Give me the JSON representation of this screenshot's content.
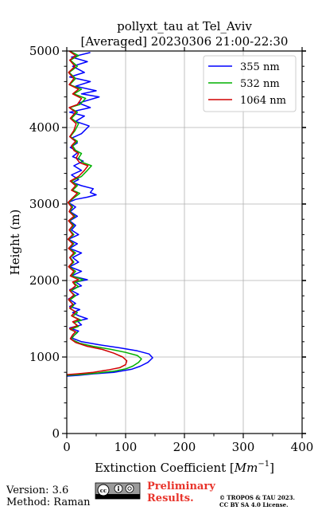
{
  "chart_data": {
    "type": "line",
    "title_line1": "pollyxt_tau at Tel_Aviv",
    "title_line2": "[Averaged] 20230306 21:00-22:30",
    "xlabel": "Extinction Coefficient [",
    "xlabel_unit": "Mm",
    "xlabel_exp": "−1",
    "xlabel_end": "]",
    "ylabel": "Height (m)",
    "xlim": [
      0,
      400
    ],
    "ylim": [
      0,
      5000
    ],
    "x_ticks": [
      0,
      100,
      200,
      300,
      400
    ],
    "x_tick_labels": [
      "0",
      "100",
      "200",
      "300",
      "400"
    ],
    "y_ticks": [
      0,
      1000,
      2000,
      3000,
      4000,
      5000
    ],
    "y_tick_labels": [
      "0",
      "1000",
      "2000",
      "3000",
      "4000",
      "5000"
    ],
    "grid": true,
    "legend_position": "top-right",
    "series": [
      {
        "name": "355 nm",
        "color": "#0000ff",
        "points": [
          [
            0,
            750
          ],
          [
            20,
            760
          ],
          [
            45,
            780
          ],
          [
            80,
            800
          ],
          [
            110,
            840
          ],
          [
            125,
            880
          ],
          [
            138,
            930
          ],
          [
            146,
            990
          ],
          [
            140,
            1040
          ],
          [
            120,
            1080
          ],
          [
            90,
            1120
          ],
          [
            55,
            1160
          ],
          [
            25,
            1200
          ],
          [
            8,
            1250
          ],
          [
            15,
            1300
          ],
          [
            20,
            1340
          ],
          [
            5,
            1380
          ],
          [
            25,
            1420
          ],
          [
            18,
            1470
          ],
          [
            35,
            1500
          ],
          [
            20,
            1540
          ],
          [
            10,
            1580
          ],
          [
            22,
            1620
          ],
          [
            5,
            1660
          ],
          [
            15,
            1700
          ],
          [
            3,
            1760
          ],
          [
            20,
            1820
          ],
          [
            5,
            1880
          ],
          [
            25,
            1930
          ],
          [
            15,
            1980
          ],
          [
            35,
            2010
          ],
          [
            8,
            2060
          ],
          [
            25,
            2120
          ],
          [
            5,
            2180
          ],
          [
            20,
            2240
          ],
          [
            10,
            2300
          ],
          [
            25,
            2360
          ],
          [
            5,
            2420
          ],
          [
            18,
            2480
          ],
          [
            3,
            2540
          ],
          [
            20,
            2600
          ],
          [
            8,
            2660
          ],
          [
            15,
            2720
          ],
          [
            5,
            2780
          ],
          [
            18,
            2840
          ],
          [
            6,
            2900
          ],
          [
            15,
            2960
          ],
          [
            3,
            3020
          ],
          [
            15,
            3060
          ],
          [
            35,
            3090
          ],
          [
            50,
            3120
          ],
          [
            40,
            3150
          ],
          [
            45,
            3200
          ],
          [
            25,
            3240
          ],
          [
            10,
            3280
          ],
          [
            20,
            3320
          ],
          [
            8,
            3380
          ],
          [
            25,
            3440
          ],
          [
            12,
            3500
          ],
          [
            28,
            3560
          ],
          [
            10,
            3620
          ],
          [
            20,
            3680
          ],
          [
            6,
            3740
          ],
          [
            18,
            3800
          ],
          [
            8,
            3860
          ],
          [
            25,
            3920
          ],
          [
            38,
            4020
          ],
          [
            15,
            4080
          ],
          [
            30,
            4150
          ],
          [
            5,
            4200
          ],
          [
            40,
            4260
          ],
          [
            20,
            4320
          ],
          [
            55,
            4400
          ],
          [
            25,
            4440
          ],
          [
            50,
            4480
          ],
          [
            15,
            4540
          ],
          [
            40,
            4600
          ],
          [
            5,
            4660
          ],
          [
            30,
            4720
          ],
          [
            10,
            4800
          ],
          [
            35,
            4860
          ],
          [
            8,
            4920
          ],
          [
            40,
            4980
          ]
        ]
      },
      {
        "name": "532 nm",
        "color": "#00b000",
        "points": [
          [
            0,
            760
          ],
          [
            20,
            770
          ],
          [
            50,
            790
          ],
          [
            80,
            815
          ],
          [
            100,
            845
          ],
          [
            112,
            880
          ],
          [
            122,
            930
          ],
          [
            127,
            975
          ],
          [
            120,
            1020
          ],
          [
            100,
            1060
          ],
          [
            75,
            1100
          ],
          [
            45,
            1140
          ],
          [
            22,
            1180
          ],
          [
            8,
            1230
          ],
          [
            12,
            1280
          ],
          [
            18,
            1320
          ],
          [
            6,
            1360
          ],
          [
            20,
            1400
          ],
          [
            12,
            1450
          ],
          [
            25,
            1480
          ],
          [
            10,
            1530
          ],
          [
            18,
            1580
          ],
          [
            6,
            1630
          ],
          [
            12,
            1680
          ],
          [
            4,
            1740
          ],
          [
            15,
            1800
          ],
          [
            6,
            1860
          ],
          [
            20,
            1920
          ],
          [
            12,
            1970
          ],
          [
            28,
            2010
          ],
          [
            8,
            2060
          ],
          [
            15,
            2120
          ],
          [
            4,
            2180
          ],
          [
            12,
            2240
          ],
          [
            6,
            2300
          ],
          [
            15,
            2360
          ],
          [
            4,
            2420
          ],
          [
            12,
            2480
          ],
          [
            3,
            2540
          ],
          [
            12,
            2600
          ],
          [
            5,
            2660
          ],
          [
            12,
            2720
          ],
          [
            4,
            2780
          ],
          [
            14,
            2840
          ],
          [
            5,
            2900
          ],
          [
            10,
            2960
          ],
          [
            3,
            3020
          ],
          [
            12,
            3080
          ],
          [
            22,
            3140
          ],
          [
            10,
            3180
          ],
          [
            18,
            3240
          ],
          [
            8,
            3300
          ],
          [
            25,
            3360
          ],
          [
            35,
            3440
          ],
          [
            42,
            3500
          ],
          [
            28,
            3540
          ],
          [
            20,
            3600
          ],
          [
            25,
            3660
          ],
          [
            15,
            3700
          ],
          [
            10,
            3760
          ],
          [
            18,
            3820
          ],
          [
            6,
            3880
          ],
          [
            14,
            3960
          ],
          [
            20,
            4050
          ],
          [
            8,
            4120
          ],
          [
            18,
            4200
          ],
          [
            5,
            4260
          ],
          [
            22,
            4300
          ],
          [
            32,
            4380
          ],
          [
            12,
            4440
          ],
          [
            25,
            4500
          ],
          [
            5,
            4560
          ],
          [
            15,
            4640
          ],
          [
            4,
            4720
          ],
          [
            18,
            4800
          ],
          [
            6,
            4880
          ],
          [
            20,
            4940
          ],
          [
            5,
            5000
          ]
        ]
      },
      {
        "name": "1064 nm",
        "color": "#d00000",
        "points": [
          [
            0,
            770
          ],
          [
            18,
            780
          ],
          [
            45,
            800
          ],
          [
            70,
            830
          ],
          [
            90,
            860
          ],
          [
            100,
            900
          ],
          [
            102,
            950
          ],
          [
            95,
            1000
          ],
          [
            80,
            1050
          ],
          [
            60,
            1100
          ],
          [
            35,
            1140
          ],
          [
            15,
            1190
          ],
          [
            6,
            1240
          ],
          [
            10,
            1290
          ],
          [
            15,
            1330
          ],
          [
            5,
            1370
          ],
          [
            18,
            1410
          ],
          [
            10,
            1460
          ],
          [
            20,
            1490
          ],
          [
            8,
            1540
          ],
          [
            15,
            1590
          ],
          [
            5,
            1640
          ],
          [
            10,
            1690
          ],
          [
            3,
            1750
          ],
          [
            12,
            1810
          ],
          [
            5,
            1870
          ],
          [
            15,
            1930
          ],
          [
            10,
            1980
          ],
          [
            20,
            2010
          ],
          [
            6,
            2060
          ],
          [
            12,
            2120
          ],
          [
            3,
            2180
          ],
          [
            10,
            2240
          ],
          [
            5,
            2300
          ],
          [
            12,
            2360
          ],
          [
            3,
            2420
          ],
          [
            10,
            2480
          ],
          [
            2,
            2540
          ],
          [
            10,
            2600
          ],
          [
            4,
            2660
          ],
          [
            10,
            2720
          ],
          [
            3,
            2780
          ],
          [
            12,
            2840
          ],
          [
            4,
            2900
          ],
          [
            8,
            2960
          ],
          [
            2,
            3020
          ],
          [
            10,
            3080
          ],
          [
            18,
            3140
          ],
          [
            8,
            3180
          ],
          [
            15,
            3240
          ],
          [
            6,
            3300
          ],
          [
            20,
            3360
          ],
          [
            30,
            3440
          ],
          [
            36,
            3500
          ],
          [
            22,
            3540
          ],
          [
            16,
            3600
          ],
          [
            20,
            3660
          ],
          [
            12,
            3700
          ],
          [
            8,
            3760
          ],
          [
            15,
            3820
          ],
          [
            5,
            3880
          ],
          [
            12,
            3960
          ],
          [
            16,
            4050
          ],
          [
            6,
            4120
          ],
          [
            15,
            4200
          ],
          [
            4,
            4260
          ],
          [
            18,
            4300
          ],
          [
            25,
            4380
          ],
          [
            10,
            4440
          ],
          [
            20,
            4500
          ],
          [
            4,
            4560
          ],
          [
            12,
            4640
          ],
          [
            3,
            4720
          ],
          [
            14,
            4800
          ],
          [
            5,
            4880
          ],
          [
            15,
            4940
          ],
          [
            4,
            5000
          ]
        ]
      }
    ]
  },
  "footer": {
    "version": "Version: 3.6",
    "method": "Method: Raman",
    "prelim_line1": "Preliminary",
    "prelim_line2": "Results.",
    "copyright_line1": "© TROPOS & TAU 2023.",
    "copyright_line2": "CC BY SA 4.0 License."
  }
}
